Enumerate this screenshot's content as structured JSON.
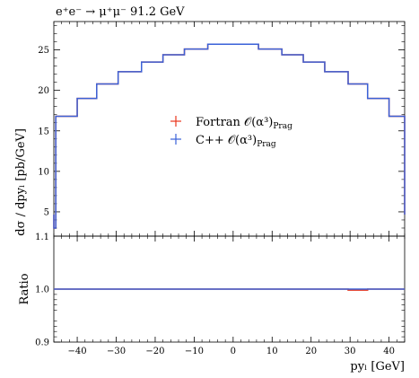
{
  "chart_data": {
    "type": "line",
    "title": "e⁺e⁻ → μ⁺μ⁻ 91.2 GeV",
    "xlabel": "pyₗ [GeV]",
    "ylabel": "dσ / dpyₗ [pb/GeV]",
    "ratio_ylabel": "Ratio",
    "xlim": [
      -46,
      44
    ],
    "ylim": [
      2,
      28.5
    ],
    "ratio_ylim": [
      0.9,
      1.1
    ],
    "x_ticks": [
      "−40",
      "−30",
      "−20",
      "−10",
      "0",
      "10",
      "20",
      "30",
      "40"
    ],
    "x_tick_values": [
      -40,
      -30,
      -20,
      -10,
      0,
      10,
      20,
      30,
      40
    ],
    "y_ticks": [
      "5",
      "10",
      "15",
      "20",
      "25"
    ],
    "y_tick_values": [
      5,
      10,
      15,
      20,
      25
    ],
    "ratio_ticks": [
      "0.9",
      "1.0"
    ],
    "ratio_tick_values": [
      0.9,
      1.0
    ],
    "ratio_top_label": "1.1",
    "bin_edges": [
      -46,
      -45.5,
      -40,
      -35,
      -29.5,
      -23.5,
      -18,
      -12.5,
      -6.5,
      0,
      6.5,
      12.5,
      18,
      23.5,
      29.5,
      34.5,
      40,
      44
    ],
    "legend_position": "center",
    "series": [
      {
        "name": "Fortran 𝒪(α³)",
        "subscript": "Prag",
        "color": "#e8351d",
        "values": [
          3.0,
          16.8,
          19.0,
          20.8,
          22.3,
          23.5,
          24.4,
          25.1,
          25.7,
          25.7,
          25.1,
          24.4,
          23.5,
          22.3,
          20.8,
          19.0,
          16.8
        ],
        "ratio": [
          1.0,
          1.0,
          1.0,
          1.0,
          1.0,
          1.0,
          1.0,
          1.0,
          1.0,
          1.0,
          1.0,
          1.0,
          1.0,
          1.0,
          0.998,
          1.0,
          1.0
        ]
      },
      {
        "name": "C++ 𝒪(α³)",
        "subscript": "Prag",
        "color": "#3a62d8",
        "values": [
          3.0,
          16.8,
          19.0,
          20.8,
          22.3,
          23.5,
          24.4,
          25.1,
          25.7,
          25.7,
          25.1,
          24.4,
          23.5,
          22.3,
          20.8,
          19.0,
          16.8
        ],
        "ratio": [
          1.0,
          1.0,
          1.0,
          1.0,
          1.0,
          1.0,
          1.0,
          1.0,
          1.0,
          1.0,
          1.0,
          1.0,
          1.0,
          1.0,
          1.0,
          1.0,
          1.0
        ]
      }
    ]
  }
}
